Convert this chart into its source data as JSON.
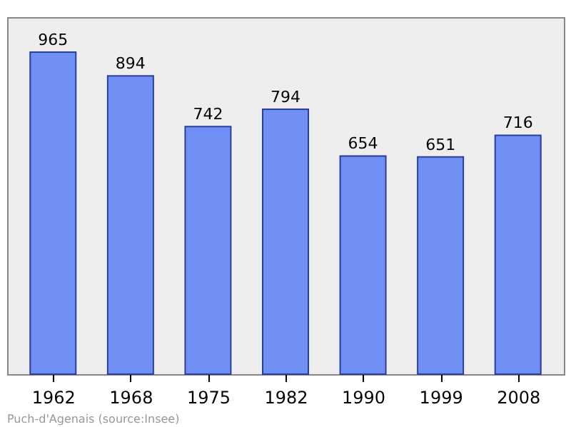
{
  "chart_data": {
    "type": "bar",
    "categories": [
      "1962",
      "1968",
      "1975",
      "1982",
      "1990",
      "1999",
      "2008"
    ],
    "values": [
      965,
      894,
      742,
      794,
      654,
      651,
      716
    ],
    "color": "#6f8ff5",
    "ylim": [
      0,
      1070
    ],
    "data_labels": true,
    "grid": false,
    "tick_labels": "x",
    "annotations": [
      "Puch-d'Agenais    (source:Insee)"
    ]
  }
}
